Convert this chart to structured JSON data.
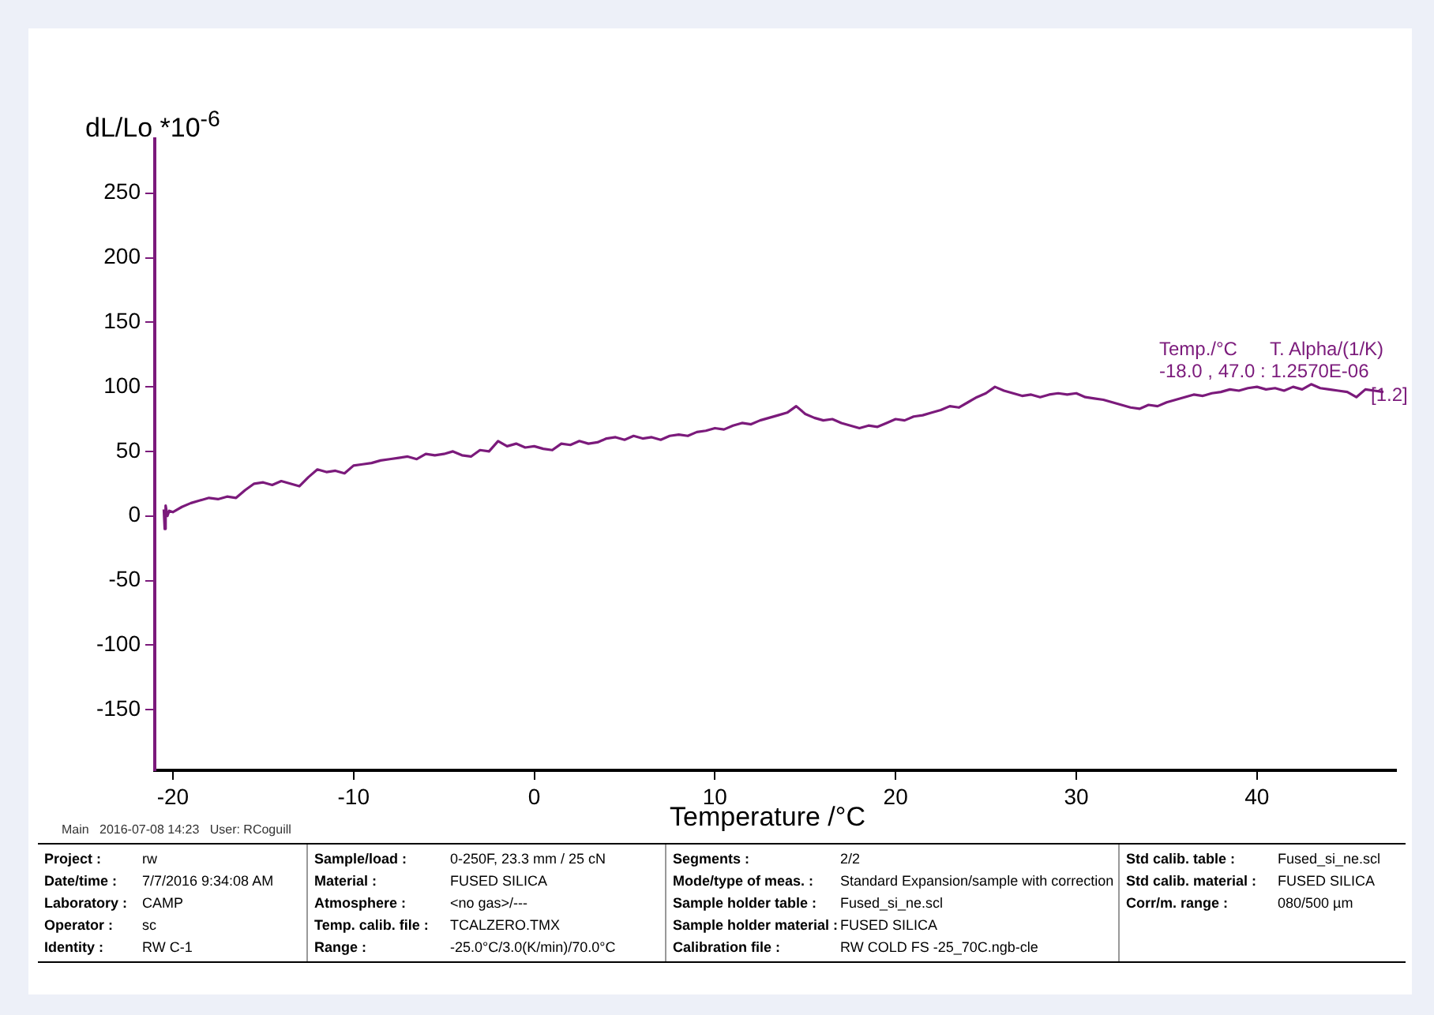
{
  "chart_data": {
    "type": "line",
    "ylabel": "dL/Lo *10$^{-6}$",
    "xlabel": "Temperature /°C",
    "xlim": [
      -21,
      47.7
    ],
    "ylim": [
      -197,
      292
    ],
    "xticks": [
      -20,
      -10,
      0,
      10,
      20,
      30,
      40
    ],
    "yticks": [
      -150,
      -100,
      -50,
      0,
      50,
      100,
      150,
      200,
      250
    ],
    "grid": false,
    "legend": false,
    "marker": "none",
    "line_style": "solid",
    "series": [
      {
        "color": "#7b1a7b",
        "x": [
          -20.5,
          -20.45,
          -20.4,
          -20.3,
          -20.2,
          -20,
          -19.5,
          -19,
          -18.5,
          -18,
          -17.5,
          -17,
          -16.5,
          -16,
          -15.5,
          -15,
          -14.5,
          -14,
          -13.5,
          -13,
          -12.5,
          -12,
          -11.5,
          -11,
          -10.5,
          -10,
          -9.5,
          -9,
          -8.5,
          -8,
          -7.5,
          -7,
          -6.5,
          -6,
          -5.5,
          -5,
          -4.5,
          -4,
          -3.5,
          -3,
          -2.5,
          -2,
          -1.5,
          -1,
          -0.5,
          0,
          0.5,
          1,
          1.5,
          2,
          2.5,
          3,
          3.5,
          4,
          4.5,
          5,
          5.5,
          6,
          6.5,
          7,
          7.5,
          8,
          8.5,
          9,
          9.5,
          10,
          10.5,
          11,
          11.5,
          12,
          12.5,
          13,
          13.5,
          14,
          14.5,
          15,
          15.5,
          16,
          16.5,
          17,
          17.5,
          18,
          18.5,
          19,
          19.5,
          20,
          20.5,
          21,
          21.5,
          22,
          22.5,
          23,
          23.5,
          24,
          24.5,
          25,
          25.5,
          26,
          26.5,
          27,
          27.5,
          28,
          28.5,
          29,
          29.5,
          30,
          30.5,
          31,
          31.5,
          32,
          32.5,
          33,
          33.5,
          34,
          34.5,
          35,
          35.5,
          36,
          36.5,
          37,
          37.5,
          38,
          38.5,
          39,
          39.5,
          40,
          40.5,
          41,
          41.5,
          42,
          42.5,
          43,
          43.5,
          44,
          44.5,
          45,
          45.5,
          46,
          46.5,
          47
        ],
        "values": [
          5,
          -10,
          8,
          0,
          4,
          3,
          7,
          10,
          12,
          14,
          13,
          15,
          14,
          20,
          25,
          26,
          24,
          27,
          25,
          23,
          30,
          36,
          34,
          35,
          33,
          39,
          40,
          41,
          43,
          44,
          45,
          46,
          44,
          48,
          47,
          48,
          50,
          47,
          46,
          51,
          50,
          58,
          54,
          56,
          53,
          54,
          52,
          51,
          56,
          55,
          58,
          56,
          57,
          60,
          61,
          59,
          62,
          60,
          61,
          59,
          62,
          63,
          62,
          65,
          66,
          68,
          67,
          70,
          72,
          71,
          74,
          76,
          78,
          80,
          85,
          79,
          76,
          74,
          75,
          72,
          70,
          68,
          70,
          69,
          72,
          75,
          74,
          77,
          78,
          80,
          82,
          85,
          84,
          88,
          92,
          95,
          100,
          97,
          95,
          93,
          94,
          92,
          94,
          95,
          94,
          95,
          92,
          91,
          90,
          88,
          86,
          84,
          83,
          86,
          85,
          88,
          90,
          92,
          94,
          93,
          95,
          96,
          98,
          97,
          99,
          100,
          98,
          99,
          97,
          100,
          98,
          102,
          99,
          98,
          97,
          96,
          92,
          98,
          97,
          96
        ]
      }
    ],
    "annotations": [
      "Temp./°C",
      "T. Alpha/(1/K)",
      "-18.0 , 47.0 : 1.2570E-06",
      "[1.2]",
      "Main   2016-07-08 14:23   User: RCoguill",
      "Project :",
      "rw",
      "Date/time :",
      "7/7/2016 9:34:08 AM",
      "Laboratory :",
      "CAMP",
      "Operator :",
      "sc",
      "Identity :",
      "RW C-1",
      "Sample/load :",
      "0-250F, 23.3 mm / 25 cN",
      "Material :",
      "FUSED SILICA",
      "Atmosphere :",
      "<no gas>/---",
      "Temp. calib. file :",
      "TCALZERO.TMX",
      "Range :",
      "-25.0°C/3.0(K/min)/70.0°C",
      "Segments :",
      "2/2",
      "Mode/type of meas. :",
      "Standard Expansion/sample with correction",
      "Sample holder table :",
      "Fused_si_ne.scl",
      "Sample holder material :",
      "FUSED SILICA",
      "Calibration file :",
      "RW COLD FS -25_70C.ngb-cle",
      "Std calib. table :",
      "Fused_si_ne.scl",
      "Std calib. material :",
      "FUSED SILICA",
      "Corr/m. range :",
      "080/500 µm"
    ]
  }
}
